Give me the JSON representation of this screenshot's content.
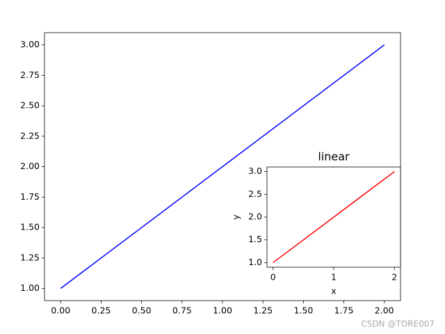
{
  "chart_data": [
    {
      "type": "line",
      "x": [
        0,
        1,
        2
      ],
      "values": [
        1,
        2,
        3
      ],
      "color": "#0000ff",
      "xlim": [
        -0.1,
        2.1
      ],
      "ylim": [
        0.9,
        3.1
      ],
      "xticks": [
        {
          "value": 0,
          "label": "0.00"
        },
        {
          "value": 0.25,
          "label": "0.25"
        },
        {
          "value": 0.5,
          "label": "0.50"
        },
        {
          "value": 0.75,
          "label": "0.75"
        },
        {
          "value": 1,
          "label": "1.00"
        },
        {
          "value": 1.25,
          "label": "1.25"
        },
        {
          "value": 1.5,
          "label": "1.50"
        },
        {
          "value": 1.75,
          "label": "1.75"
        },
        {
          "value": 2,
          "label": "2.00"
        }
      ],
      "yticks": [
        {
          "value": 1,
          "label": "1.00"
        },
        {
          "value": 1.25,
          "label": "1.25"
        },
        {
          "value": 1.5,
          "label": "1.50"
        },
        {
          "value": 1.75,
          "label": "1.75"
        },
        {
          "value": 2,
          "label": "2.00"
        },
        {
          "value": 2.25,
          "label": "2.25"
        },
        {
          "value": 2.5,
          "label": "2.50"
        },
        {
          "value": 2.75,
          "label": "2.75"
        },
        {
          "value": 3,
          "label": "3.00"
        }
      ]
    },
    {
      "type": "line",
      "title": "linear",
      "x_label": "x",
      "y_label": "y",
      "x": [
        0,
        1,
        2
      ],
      "values": [
        1,
        2,
        3
      ],
      "color": "#ff0000",
      "xlim": [
        -0.1,
        2.1
      ],
      "ylim": [
        0.9,
        3.1
      ],
      "xticks": [
        0,
        1,
        2
      ],
      "yticks": [
        {
          "value": 1,
          "label": "1.0"
        },
        {
          "value": 1.5,
          "label": "1.5"
        },
        {
          "value": 2,
          "label": "2.0"
        },
        {
          "value": 2.5,
          "label": "2.5"
        },
        {
          "value": 3,
          "label": "3.0"
        }
      ]
    }
  ],
  "watermark": "CSDN @TORE007"
}
